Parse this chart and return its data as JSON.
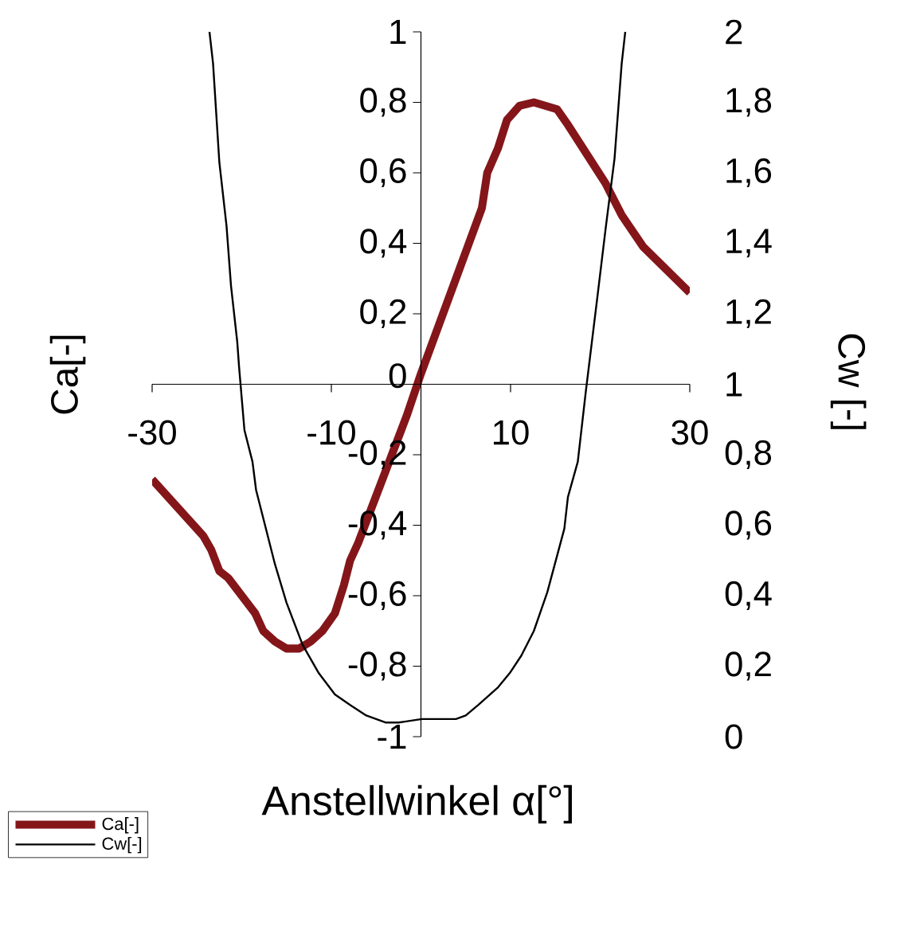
{
  "chart_data": {
    "type": "line",
    "xlabel": "Anstellwinkel α[°]",
    "ylabel": "Ca[-]",
    "y2label": "Cw [-]",
    "xlim": [
      -30,
      30
    ],
    "xticks": [
      -30,
      -10,
      10,
      30
    ],
    "ylim": [
      -1,
      1
    ],
    "yticks": [
      -1,
      {
        "value": -0.8,
        "label": "-0,8"
      },
      {
        "value": -0.6,
        "label": "-0,6"
      },
      {
        "value": -0.4,
        "label": "-0,4"
      },
      {
        "value": -0.2,
        "label": "-0,2"
      },
      0,
      {
        "value": 0.2,
        "label": "0,2"
      },
      {
        "value": 0.4,
        "label": "0,4"
      },
      {
        "value": 0.6,
        "label": "0,6"
      },
      {
        "value": 0.8,
        "label": "0,8"
      },
      1
    ],
    "y2lim": [
      0,
      2
    ],
    "y2ticks": [
      0,
      {
        "value": 0.2,
        "label": "0,2"
      },
      {
        "value": 0.4,
        "label": "0,4"
      },
      {
        "value": 0.6,
        "label": "0,6"
      },
      {
        "value": 0.8,
        "label": "0,8"
      },
      1,
      {
        "value": 1.2,
        "label": "1,2"
      },
      {
        "value": 1.4,
        "label": "1,4"
      },
      {
        "value": 1.6,
        "label": "1,6"
      },
      {
        "value": 1.8,
        "label": "1,8"
      },
      2
    ],
    "legend": "bottom left",
    "line_style": "solid",
    "series": [
      {
        "name": "Ca[-]",
        "color": "#84161a",
        "x": [
          -30,
          -24.3,
          -23.4,
          -22.5,
          -21.5,
          -18.5,
          -17.6,
          -16.3,
          -15.0,
          -13.6,
          -12.3,
          -11.0,
          -9.6,
          -8.6,
          -7.9,
          -7.0,
          -1.6,
          0,
          6.8,
          7.4,
          8.6,
          9.6,
          11.0,
          12.6,
          15.2,
          16.3,
          20.6,
          22.4,
          24.8,
          30
        ],
        "values": [
          -0.27,
          -0.43,
          -0.47,
          -0.53,
          -0.55,
          -0.65,
          -0.7,
          -0.73,
          -0.75,
          -0.75,
          -0.73,
          -0.7,
          -0.65,
          -0.57,
          -0.5,
          -0.45,
          -0.09,
          0.03,
          0.5,
          0.6,
          0.67,
          0.75,
          0.79,
          0.8,
          0.78,
          0.74,
          0.57,
          0.48,
          0.39,
          0.26
        ]
      },
      {
        "name": "Cw[-]",
        "color": "#000000",
        "axis": "y2",
        "x": [
          -23.6,
          -23.2,
          -22.5,
          -21.7,
          -21.2,
          -20.5,
          -20.3,
          -19.7,
          -18.8,
          -18.4,
          -17.4,
          -16.3,
          -15.0,
          -13.2,
          -11.4,
          -9.6,
          -7.9,
          -6.1,
          -3.9,
          -2.5,
          0.1,
          3.9,
          5.0,
          6.4,
          8.6,
          9.9,
          11.2,
          12.6,
          14.1,
          16.0,
          16.4,
          17.5,
          18.4,
          19.7,
          20.6,
          21.6,
          22.4,
          22.8
        ],
        "values": [
          2.0,
          1.91,
          1.63,
          1.45,
          1.28,
          1.12,
          1.05,
          0.87,
          0.78,
          0.7,
          0.6,
          0.49,
          0.38,
          0.26,
          0.18,
          0.12,
          0.09,
          0.06,
          0.04,
          0.04,
          0.05,
          0.05,
          0.06,
          0.09,
          0.14,
          0.18,
          0.23,
          0.3,
          0.41,
          0.59,
          0.68,
          0.78,
          0.98,
          1.25,
          1.44,
          1.64,
          1.91,
          2.0
        ]
      }
    ]
  }
}
